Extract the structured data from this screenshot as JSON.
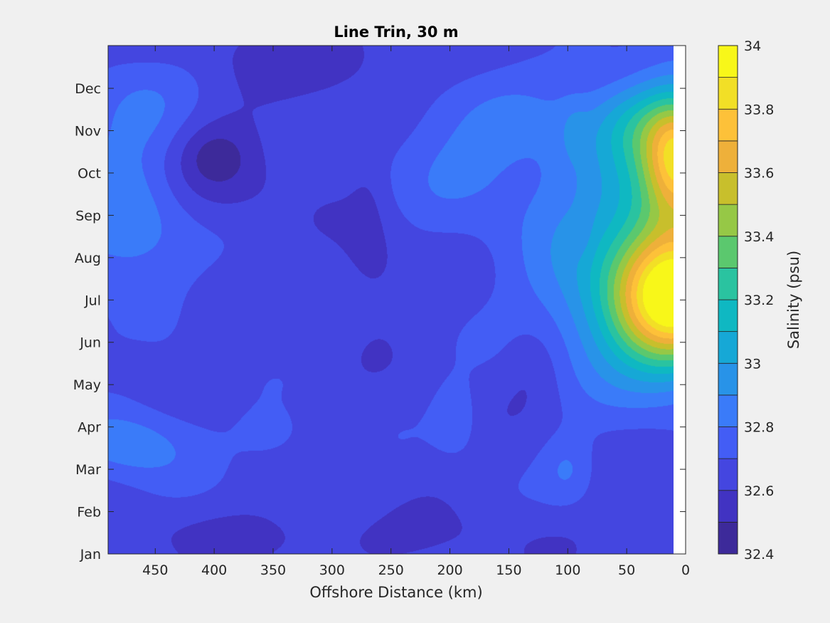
{
  "chart_data": {
    "type": "heatmap",
    "subtype": "filled-contour",
    "title": "Line Trin, 30 m",
    "xlabel": "Offshore Distance (km)",
    "ylabel": "",
    "x_reversed": true,
    "xlim": [
      490,
      0
    ],
    "x_ticks": [
      450,
      400,
      350,
      300,
      250,
      200,
      150,
      100,
      50,
      0
    ],
    "y_ticks": [
      "Jan",
      "Feb",
      "Mar",
      "Apr",
      "May",
      "Jun",
      "Jul",
      "Aug",
      "Sep",
      "Oct",
      "Nov",
      "Dec"
    ],
    "colorbar": {
      "label": "Salinity (psu)",
      "range": [
        32.4,
        34
      ],
      "step": 0.1,
      "tick_values": [
        32.4,
        32.6,
        32.8,
        33,
        33.2,
        33.4,
        33.6,
        33.8,
        34
      ],
      "tick_labels": [
        "32.4",
        "32.6",
        "32.8",
        "33",
        "33.2",
        "33.4",
        "33.6",
        "33.8",
        "34"
      ],
      "colors": [
        "#3d2a9a",
        "#4133c2",
        "#4446e0",
        "#435df5",
        "#3a7bf9",
        "#2893e8",
        "#16a8d6",
        "#0fb8c2",
        "#2ac3a0",
        "#5bc86e",
        "#96c846",
        "#c8bf2c",
        "#eeb03a",
        "#fdc139",
        "#f2df26",
        "#f8f719"
      ]
    },
    "grid": false,
    "background_value": 32.65,
    "features": [
      {
        "kind": "low",
        "x": 395,
        "y": 9.1,
        "rx": 48,
        "ry": 1.35,
        "amp": -0.12
      },
      {
        "kind": "low",
        "x": 400,
        "y": 9.4,
        "rx": 24,
        "ry": 0.6,
        "amp": -0.08
      },
      {
        "kind": "low",
        "x": 290,
        "y": 11.8,
        "rx": 110,
        "ry": 1.0,
        "amp": -0.1
      },
      {
        "kind": "low",
        "x": 268,
        "y": 6.8,
        "rx": 30,
        "ry": 1.4,
        "amp": -0.09
      },
      {
        "kind": "low",
        "x": 270,
        "y": 8.2,
        "rx": 14,
        "ry": 1.2,
        "amp": -0.05
      },
      {
        "kind": "low",
        "x": 130,
        "y": 4.5,
        "rx": 26,
        "ry": 1.1,
        "amp": -0.09
      },
      {
        "kind": "low",
        "x": 320,
        "y": 0.4,
        "rx": 200,
        "ry": 0.65,
        "amp": -0.07
      },
      {
        "kind": "low",
        "x": 36,
        "y": 0.6,
        "rx": 16,
        "ry": 0.7,
        "amp": -0.06
      },
      {
        "kind": "low",
        "x": 470,
        "y": 4.6,
        "rx": 20,
        "ry": 0.35,
        "amp": -0.06
      },
      {
        "kind": "low",
        "x": 88,
        "y": 7.5,
        "rx": 10,
        "ry": 0.6,
        "amp": -0.05
      },
      {
        "kind": "high",
        "x": 475,
        "y": 7.7,
        "rx": 55,
        "ry": 1.6,
        "amp": 0.24
      },
      {
        "kind": "high",
        "x": 470,
        "y": 10.4,
        "rx": 50,
        "ry": 1.2,
        "amp": 0.17
      },
      {
        "kind": "high",
        "x": 470,
        "y": 2.6,
        "rx": 55,
        "ry": 0.95,
        "amp": 0.22
      },
      {
        "kind": "high",
        "x": 350,
        "y": 2.8,
        "rx": 30,
        "ry": 0.6,
        "amp": 0.1
      },
      {
        "kind": "high",
        "x": 190,
        "y": 9.6,
        "rx": 65,
        "ry": 1.8,
        "amp": 0.15
      },
      {
        "kind": "high",
        "x": 195,
        "y": 3.2,
        "rx": 20,
        "ry": 0.9,
        "amp": 0.12
      },
      {
        "kind": "high",
        "x": 100,
        "y": 2.0,
        "rx": 22,
        "ry": 0.8,
        "amp": 0.14
      },
      {
        "kind": "high",
        "x": 80,
        "y": 8.8,
        "rx": 75,
        "ry": 2.6,
        "amp": 0.2
      },
      {
        "kind": "high",
        "x": 70,
        "y": 5.6,
        "rx": 70,
        "ry": 1.9,
        "amp": 0.2
      },
      {
        "kind": "high",
        "x": 95,
        "y": 10.0,
        "rx": 12,
        "ry": 0.7,
        "amp": 0.08
      },
      {
        "kind": "high",
        "x": 8,
        "y": 6.0,
        "rx": 55,
        "ry": 1.55,
        "amp": 1.05
      },
      {
        "kind": "high",
        "x": 5,
        "y": 9.3,
        "rx": 28,
        "ry": 1.25,
        "amp": 0.72
      },
      {
        "kind": "high",
        "x": 10,
        "y": 7.7,
        "rx": 50,
        "ry": 2.8,
        "amp": 0.45
      },
      {
        "kind": "high",
        "x": 30,
        "y": 10.2,
        "rx": 50,
        "ry": 1.0,
        "amp": 0.3
      }
    ]
  }
}
